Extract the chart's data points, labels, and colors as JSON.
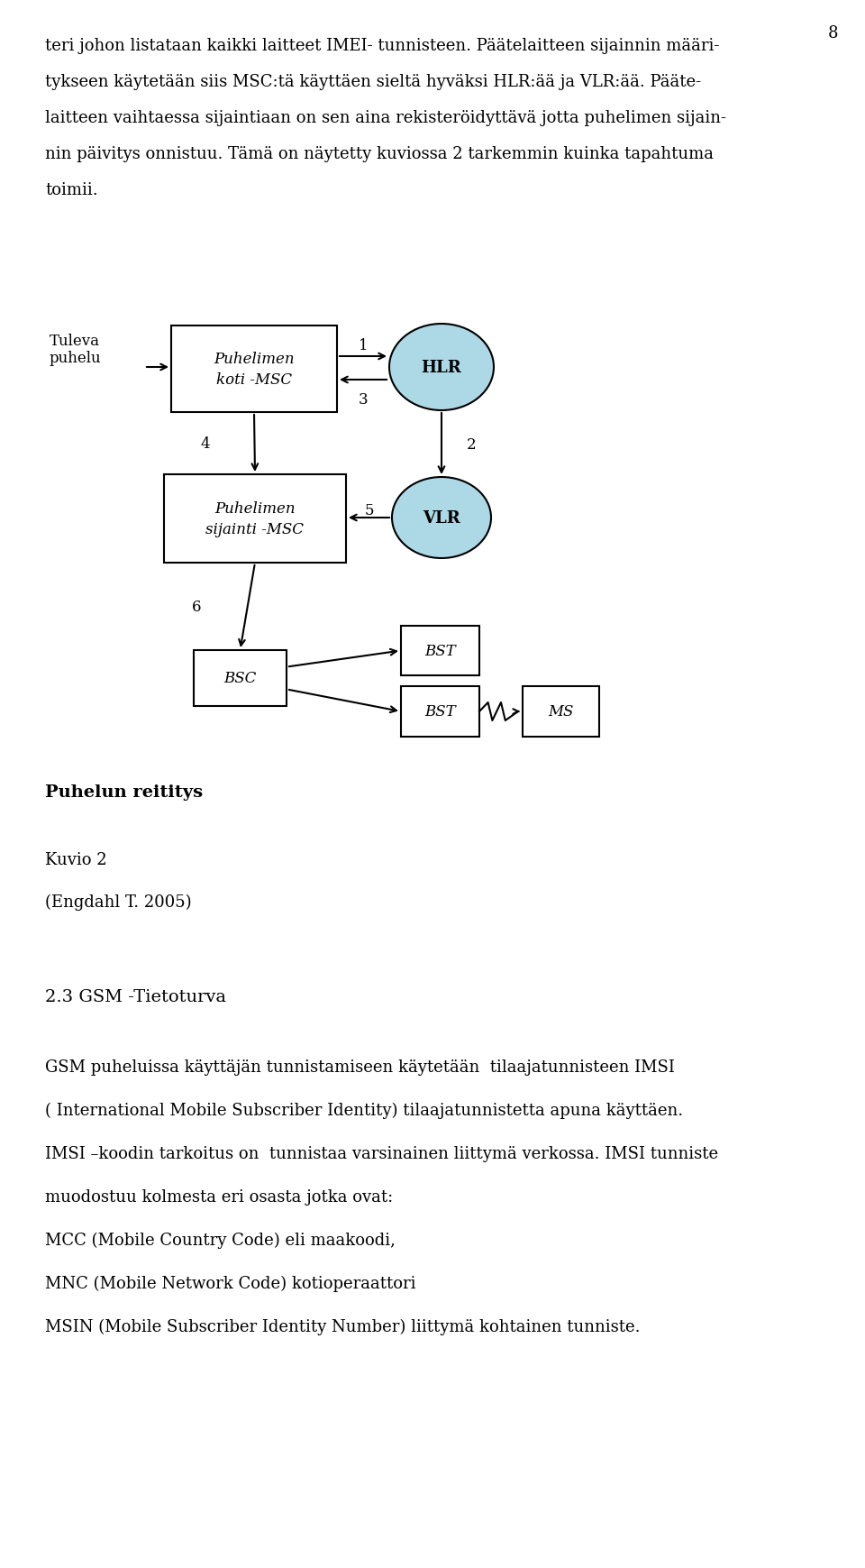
{
  "page_number": "8",
  "paragraph1": "teri johon listataan kaikki laitteet IMEI- tunnisteen. Päätelaitteen sijainnin määri-",
  "paragraph2": "tykseen käytetään siis MSC:tä käyttäen sieltä hyväksi HLR:ää ja VLR:ää. Pääte-",
  "paragraph3": "laitteen vaihtaessa sijaintiaan on sen aina rekisteröidyttävä jotta puhelimen sijain-",
  "paragraph4": "nin päivitys onnistuu. Tämä on näytetty kuviossa 2 tarkemmin kuinka tapahtuma",
  "paragraph5": "toimii.",
  "diagram_box1": "Puhelimen\nkoti -MSC",
  "diagram_box2": "Puhelimen\nsijainti -MSC",
  "diagram_box3": "BSC",
  "diagram_ellipse1": "HLR",
  "diagram_ellipse2": "VLR",
  "diagram_box4": "BST",
  "diagram_box5": "BST",
  "diagram_box6": "MS",
  "diagram_caption": "Puhelun reititys",
  "kuvio_label": "Kuvio 2",
  "engdahl_label": "(Engdahl T. 2005)",
  "section_title": "2.3 GSM -Tietoturva",
  "para_body1": "GSM puheluissa käyttäjän tunnistamiseen käytetään  tilaajatunnisteen IMSI",
  "para_body2": "( International Mobile Subscriber Identity) tilaajatunnistetta apuna käyttäen.",
  "para_body3": "IMSI –koodin tarkoitus on  tunnistaa varsinainen liittymä verkossa. IMSI tunniste",
  "para_body4": "muodostuu kolmesta eri osasta jotka ovat:",
  "para_body5": "MCC (Mobile Country Code) eli maakoodi,",
  "para_body6": "MNC (Mobile Network Code) kotioperaattori",
  "para_body7": "MSIN (Mobile Subscriber Identity Number) liittymä kohtainen tunniste.",
  "bg_color": "#ffffff",
  "text_color": "#000000",
  "box_color": "#ffffff",
  "ellipse_fill": "#add8e6",
  "ellipse_edge": "#000000",
  "font_size_body": 13,
  "font_size_section": 14,
  "font_size_caption": 13,
  "font_size_diagram": 11,
  "font_size_pagenum": 13
}
